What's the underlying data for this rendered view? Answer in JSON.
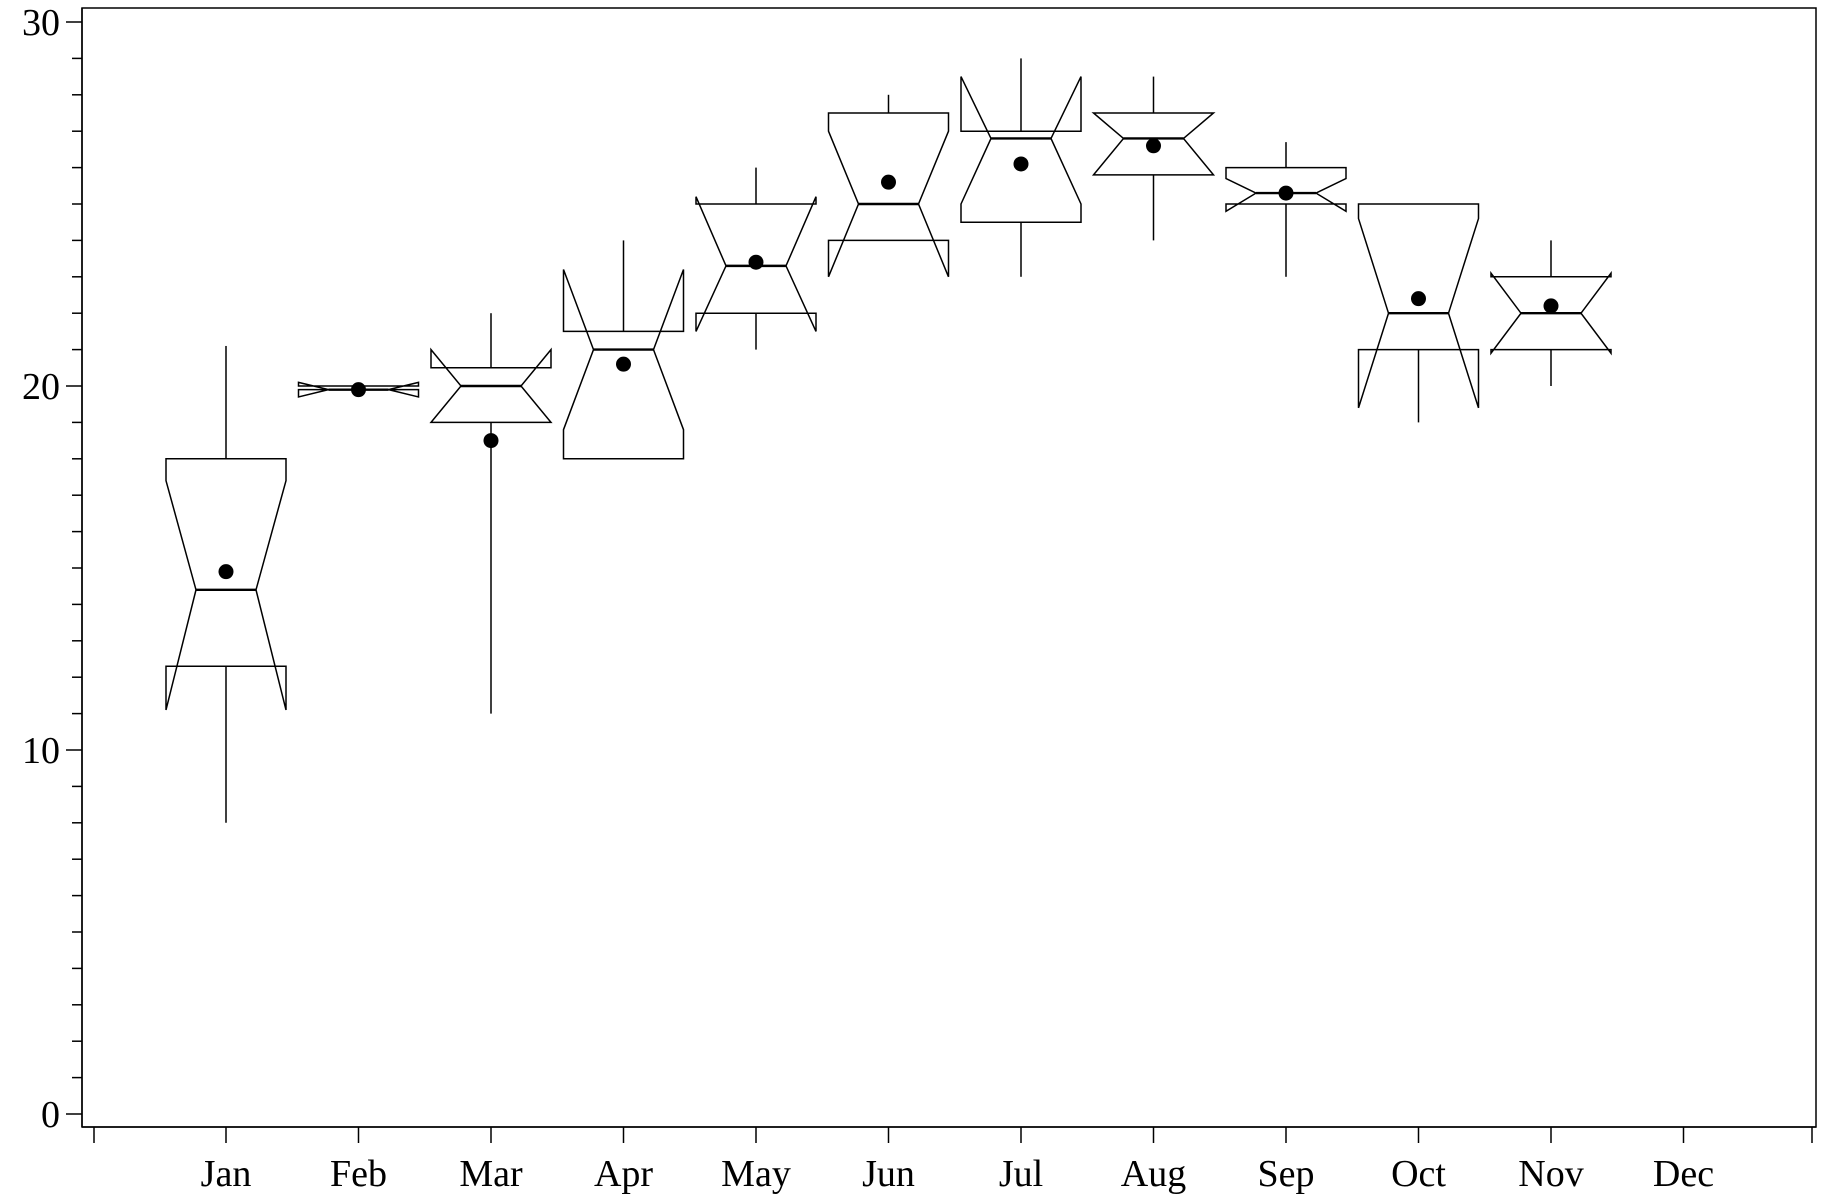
{
  "chart_data": {
    "type": "box",
    "notched": true,
    "categories": [
      "Jan",
      "Feb",
      "Mar",
      "Apr",
      "May",
      "Jun",
      "Jul",
      "Aug",
      "Sep",
      "Oct",
      "Nov",
      "Dec"
    ],
    "ylim": [
      0,
      30
    ],
    "yticks_major": [
      0,
      10,
      20,
      30
    ],
    "yticks_minor_step": 1,
    "ytick_labels": [
      "0",
      "10",
      "20",
      "30"
    ],
    "title": "",
    "xlabel": "",
    "ylabel": "",
    "grid": false,
    "boxes": [
      {
        "category": "Jan",
        "q1": 12.3,
        "median": 14.4,
        "q3": 18.0,
        "notch_low": 11.1,
        "notch_high": 17.4,
        "whisker_low": 8.0,
        "whisker_high": 21.1,
        "mean": 14.9
      },
      {
        "category": "Feb",
        "q1": 19.9,
        "median": 19.9,
        "q3": 20.0,
        "notch_low": 19.7,
        "notch_high": 20.1,
        "whisker_low": 19.9,
        "whisker_high": 20.0,
        "mean": 19.9
      },
      {
        "category": "Mar",
        "q1": 19.0,
        "median": 20.0,
        "q3": 20.5,
        "notch_low": 19.0,
        "notch_high": 21.0,
        "whisker_low": 11.0,
        "whisker_high": 22.0,
        "mean": 18.5
      },
      {
        "category": "Apr",
        "q1": 18.0,
        "median": 21.0,
        "q3": 21.5,
        "notch_low": 18.8,
        "notch_high": 23.2,
        "whisker_low": 18.0,
        "whisker_high": 24.0,
        "mean": 20.6
      },
      {
        "category": "May",
        "q1": 22.0,
        "median": 23.3,
        "q3": 25.0,
        "notch_low": 21.5,
        "notch_high": 25.2,
        "whisker_low": 21.0,
        "whisker_high": 26.0,
        "mean": 23.4
      },
      {
        "category": "Jun",
        "q1": 24.0,
        "median": 25.0,
        "q3": 27.5,
        "notch_low": 23.0,
        "notch_high": 27.0,
        "whisker_low": 24.0,
        "whisker_high": 28.0,
        "mean": 25.6
      },
      {
        "category": "Jul",
        "q1": 24.5,
        "median": 26.8,
        "q3": 27.0,
        "notch_low": 25.0,
        "notch_high": 28.5,
        "whisker_low": 23.0,
        "whisker_high": 29.0,
        "mean": 26.1
      },
      {
        "category": "Aug",
        "q1": 25.8,
        "median": 26.8,
        "q3": 27.5,
        "notch_low": 25.8,
        "notch_high": 27.5,
        "whisker_low": 24.0,
        "whisker_high": 28.5,
        "mean": 26.6
      },
      {
        "category": "Sep",
        "q1": 25.0,
        "median": 25.3,
        "q3": 26.0,
        "notch_low": 24.8,
        "notch_high": 25.7,
        "whisker_low": 23.0,
        "whisker_high": 26.7,
        "mean": 25.3
      },
      {
        "category": "Oct",
        "q1": 21.0,
        "median": 22.0,
        "q3": 25.0,
        "notch_low": 19.4,
        "notch_high": 24.6,
        "whisker_low": 19.0,
        "whisker_high": 25.0,
        "mean": 22.4
      },
      {
        "category": "Nov",
        "q1": 21.0,
        "median": 22.0,
        "q3": 23.0,
        "notch_low": 20.9,
        "notch_high": 23.1,
        "whisker_low": 20.0,
        "whisker_high": 24.0,
        "mean": 22.2
      }
    ]
  }
}
